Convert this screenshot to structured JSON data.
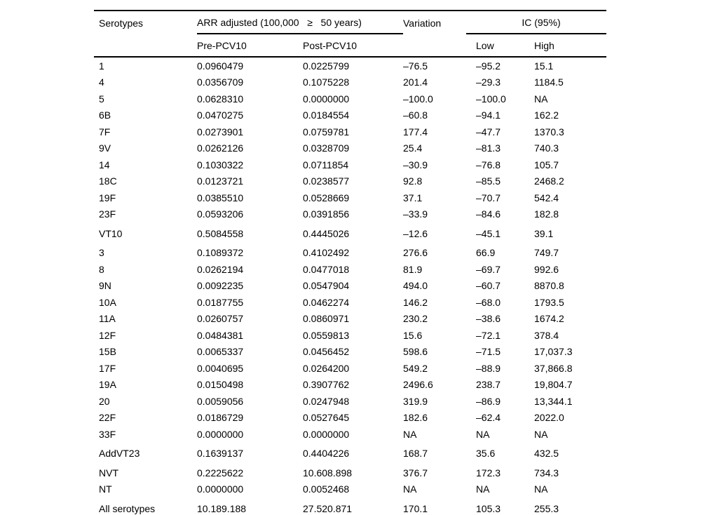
{
  "table": {
    "header": {
      "serotypes": "Serotypes",
      "arr_group": "ARR adjusted (100,000   ≥   50 years)",
      "variation": "Variation",
      "ic_group": "IC (95%)",
      "pre": "Pre-PCV10",
      "post": "Post-PCV10",
      "low": "Low",
      "high": "High"
    },
    "columns": [
      "serotype",
      "pre_pcv10",
      "post_pcv10",
      "variation",
      "ic_low",
      "ic_high"
    ],
    "groups": [
      {
        "rows": [
          [
            "1",
            "0.0960479",
            "0.0225799",
            "–76.5",
            "–95.2",
            "15.1"
          ],
          [
            "4",
            "0.0356709",
            "0.1075228",
            "201.4",
            "–29.3",
            "1184.5"
          ],
          [
            "5",
            "0.0628310",
            "0.0000000",
            "–100.0",
            "–100.0",
            "NA"
          ],
          [
            "6B",
            "0.0470275",
            "0.0184554",
            "–60.8",
            "–94.1",
            "162.2"
          ],
          [
            "7F",
            "0.0273901",
            "0.0759781",
            "177.4",
            "–47.7",
            "1370.3"
          ],
          [
            "9V",
            "0.0262126",
            "0.0328709",
            "25.4",
            "–81.3",
            "740.3"
          ],
          [
            "14",
            "0.1030322",
            "0.0711854",
            "–30.9",
            "–76.8",
            "105.7"
          ],
          [
            "18C",
            "0.0123721",
            "0.0238577",
            "92.8",
            "–85.5",
            "2468.2"
          ],
          [
            "19F",
            "0.0385510",
            "0.0528669",
            "37.1",
            "–70.7",
            "542.4"
          ],
          [
            "23F",
            "0.0593206",
            "0.0391856",
            "–33.9",
            "–84.6",
            "182.8"
          ]
        ]
      },
      {
        "rows": [
          [
            "VT10",
            "0.5084558",
            "0.4445026",
            "–12.6",
            "–45.1",
            "39.1"
          ]
        ]
      },
      {
        "rows": [
          [
            "3",
            "0.1089372",
            "0.4102492",
            "276.6",
            "66.9",
            "749.7"
          ],
          [
            "8",
            "0.0262194",
            "0.0477018",
            "81.9",
            "–69.7",
            "992.6"
          ],
          [
            "9N",
            "0.0092235",
            "0.0547904",
            "494.0",
            "–60.7",
            "8870.8"
          ],
          [
            "10A",
            "0.0187755",
            "0.0462274",
            "146.2",
            "–68.0",
            "1793.5"
          ],
          [
            "11A",
            "0.0260757",
            "0.0860971",
            "230.2",
            "–38.6",
            "1674.2"
          ],
          [
            "12F",
            "0.0484381",
            "0.0559813",
            "15.6",
            "–72.1",
            "378.4"
          ],
          [
            "15B",
            "0.0065337",
            "0.0456452",
            "598.6",
            "–71.5",
            "17,037.3"
          ],
          [
            "17F",
            "0.0040695",
            "0.0264200",
            "549.2",
            "–88.9",
            "37,866.8"
          ],
          [
            "19A",
            "0.0150498",
            "0.3907762",
            "2496.6",
            "238.7",
            "19,804.7"
          ],
          [
            "20",
            "0.0059056",
            "0.0247948",
            "319.9",
            "–86.9",
            "13,344.1"
          ],
          [
            "22F",
            "0.0186729",
            "0.0527645",
            "182.6",
            "–62.4",
            "2022.0"
          ],
          [
            "33F",
            "0.0000000",
            "0.0000000",
            "NA",
            "NA",
            "NA"
          ]
        ]
      },
      {
        "rows": [
          [
            "AddVT23",
            "0.1639137",
            "0.4404226",
            "168.7",
            "35.6",
            "432.5"
          ]
        ]
      },
      {
        "rows": [
          [
            "NVT",
            "0.2225622",
            "10.608.898",
            "376.7",
            "172.3",
            "734.3"
          ],
          [
            "NT",
            "0.0000000",
            "0.0052468",
            "NA",
            "NA",
            "NA"
          ]
        ]
      },
      {
        "rows": [
          [
            "All serotypes",
            "10.189.188",
            "27.520.871",
            "170.1",
            "105.3",
            "255.3"
          ]
        ]
      }
    ]
  }
}
